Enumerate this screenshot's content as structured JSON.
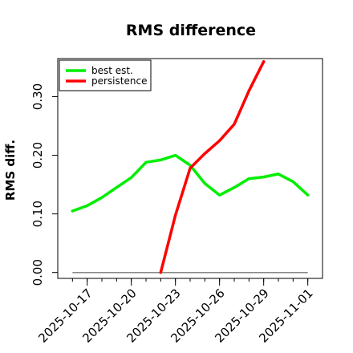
{
  "chart_data": {
    "type": "line",
    "title": "RMS difference",
    "xlabel": "",
    "ylabel": "RMS diff.",
    "x_tick_labels": [
      "2025-10-17",
      "2025-10-20",
      "2025-10-23",
      "2025-10-26",
      "2025-10-29",
      "2025-11-01"
    ],
    "x_tick_dates": [
      "2025-10-17",
      "2025-10-20",
      "2025-10-23",
      "2025-10-26",
      "2025-10-29",
      "2025-11-01"
    ],
    "y_ticks": [
      0.0,
      0.1,
      0.2,
      0.3
    ],
    "y_tick_labels": [
      "0.00",
      "0.10",
      "0.20",
      "0.30"
    ],
    "xlim": [
      "2025-10-15",
      "2025-11-02"
    ],
    "ylim": [
      -0.01,
      0.365
    ],
    "grid": false,
    "legend_position": "top-left",
    "baseline": 0,
    "series": [
      {
        "name": "best est.",
        "color": "#00ee00",
        "x": [
          "2025-10-16",
          "2025-10-17",
          "2025-10-18",
          "2025-10-19",
          "2025-10-20",
          "2025-10-21",
          "2025-10-22",
          "2025-10-23",
          "2025-10-24",
          "2025-10-25",
          "2025-10-26",
          "2025-10-27",
          "2025-10-28",
          "2025-10-29",
          "2025-10-30",
          "2025-10-31",
          "2025-11-01"
        ],
        "values": [
          0.105,
          0.114,
          0.128,
          0.145,
          0.162,
          0.188,
          0.192,
          0.2,
          0.183,
          0.152,
          0.132,
          0.145,
          0.16,
          0.163,
          0.168,
          0.155,
          0.132
        ]
      },
      {
        "name": "persistence",
        "color": "#ff0000",
        "x": [
          "2025-10-22",
          "2025-10-23",
          "2025-10-24",
          "2025-10-25",
          "2025-10-26",
          "2025-10-27",
          "2025-10-28",
          "2025-10-29"
        ],
        "values": [
          0.0,
          0.098,
          0.178,
          0.203,
          0.225,
          0.253,
          0.31,
          0.36
        ]
      }
    ]
  }
}
